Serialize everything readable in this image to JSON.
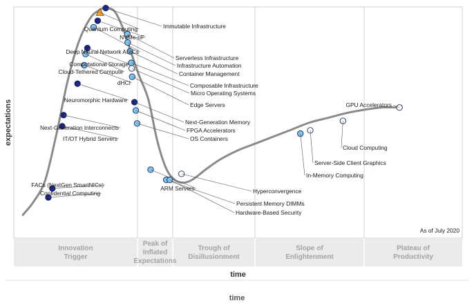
{
  "chart_data": {
    "type": "scatter",
    "chart_kind": "hype-cycle",
    "ylabel": "expectations",
    "xlabel": "time",
    "as_of": "As of July 2020",
    "phases": [
      {
        "lines": [
          "Innovation",
          "Trigger"
        ]
      },
      {
        "lines": [
          "Peak of",
          "Inflated",
          "Expectations"
        ]
      },
      {
        "lines": [
          "Trough of",
          "Disillusionment"
        ]
      },
      {
        "lines": [
          "Slope of",
          "Enlightenment"
        ]
      },
      {
        "lines": [
          "Plateau of",
          "Productivity"
        ]
      }
    ],
    "curve": [
      [
        0.02,
        0.1
      ],
      [
        0.045,
        0.16
      ],
      [
        0.07,
        0.25
      ],
      [
        0.095,
        0.45
      ],
      [
        0.12,
        0.68
      ],
      [
        0.145,
        0.85
      ],
      [
        0.17,
        0.95
      ],
      [
        0.19,
        0.985
      ],
      [
        0.205,
        0.995
      ],
      [
        0.225,
        0.98
      ],
      [
        0.245,
        0.9
      ],
      [
        0.262,
        0.8
      ],
      [
        0.28,
        0.7
      ],
      [
        0.3,
        0.6
      ],
      [
        0.32,
        0.42
      ],
      [
        0.34,
        0.3
      ],
      [
        0.36,
        0.25
      ],
      [
        0.38,
        0.24
      ],
      [
        0.4,
        0.255
      ],
      [
        0.43,
        0.3
      ],
      [
        0.46,
        0.34
      ],
      [
        0.5,
        0.38
      ],
      [
        0.54,
        0.41
      ],
      [
        0.58,
        0.44
      ],
      [
        0.62,
        0.47
      ],
      [
        0.66,
        0.5
      ],
      [
        0.7,
        0.52
      ],
      [
        0.74,
        0.54
      ],
      [
        0.78,
        0.555
      ],
      [
        0.82,
        0.565
      ],
      [
        0.86,
        0.565
      ]
    ],
    "legend_colors": {
      "dark": "#1a237e",
      "light": "#81c6f0",
      "white": "#ffffff",
      "triangle": "#f2a12b"
    },
    "points": [
      {
        "name": "Quantum Computing",
        "x": 0.192,
        "y": 0.975,
        "marker": "triangle",
        "label_side": "left"
      },
      {
        "name": "NVMe-oF",
        "x": 0.187,
        "y": 0.94,
        "marker": "dark",
        "label_side": "left"
      },
      {
        "name": "Immutable Infrastructure",
        "x": 0.205,
        "y": 0.995,
        "marker": "dark",
        "label_side": "right"
      },
      {
        "name": "Deep Neural Network ASICs",
        "x": 0.178,
        "y": 0.912,
        "marker": "light",
        "label_side": "left"
      },
      {
        "name": "Computational Storage",
        "x": 0.164,
        "y": 0.822,
        "marker": "dark",
        "label_side": "left"
      },
      {
        "name": "Cloud-Tethered Compute",
        "x": 0.16,
        "y": 0.796,
        "marker": "light",
        "label_side": "left"
      },
      {
        "name": "dHCI",
        "x": 0.157,
        "y": 0.748,
        "marker": "light",
        "label_side": "left"
      },
      {
        "name": "Neuromorphic Hardware",
        "x": 0.142,
        "y": 0.668,
        "marker": "dark",
        "label_side": "left"
      },
      {
        "name": "Next-Generation Interconnects",
        "x": 0.111,
        "y": 0.532,
        "marker": "dark",
        "label_side": "left"
      },
      {
        "name": "IT/OT Hybrid Servers",
        "x": 0.108,
        "y": 0.484,
        "marker": "dark",
        "label_side": "left"
      },
      {
        "name": "FACs (NextGen SmartNICs)",
        "x": 0.086,
        "y": 0.215,
        "marker": "dark",
        "label_side": "left"
      },
      {
        "name": "Confidential Computing",
        "x": 0.077,
        "y": 0.176,
        "marker": "dark",
        "label_side": "left"
      },
      {
        "name": "Serverless Infrastructure",
        "x": 0.253,
        "y": 0.882,
        "marker": "light",
        "label_side": "right"
      },
      {
        "name": "Infrastructure Automation",
        "x": 0.254,
        "y": 0.846,
        "marker": "light",
        "label_side": "right"
      },
      {
        "name": "Container Management",
        "x": 0.259,
        "y": 0.808,
        "marker": "light",
        "label_side": "right"
      },
      {
        "name": "Composable Infrastructure",
        "x": 0.262,
        "y": 0.758,
        "marker": "light",
        "label_side": "right"
      },
      {
        "name": "Micro Operating Systems",
        "x": 0.263,
        "y": 0.734,
        "marker": "white",
        "label_side": "right"
      },
      {
        "name": "Edge Servers",
        "x": 0.264,
        "y": 0.698,
        "marker": "light",
        "label_side": "right"
      },
      {
        "name": "Next-Generation Memory",
        "x": 0.269,
        "y": 0.588,
        "marker": "dark",
        "label_side": "right"
      },
      {
        "name": "FPGA Accelerators",
        "x": 0.272,
        "y": 0.552,
        "marker": "light",
        "label_side": "right"
      },
      {
        "name": "OS Containers",
        "x": 0.275,
        "y": 0.496,
        "marker": "light",
        "label_side": "right"
      },
      {
        "name": "ARM Servers",
        "x": 0.305,
        "y": 0.296,
        "marker": "light",
        "label_side": "left"
      },
      {
        "name": "Persistent Memory DIMMs",
        "x": 0.34,
        "y": 0.252,
        "marker": "light",
        "label_side": "right"
      },
      {
        "name": "Hardware-Based Security",
        "x": 0.348,
        "y": 0.252,
        "marker": "light",
        "label_side": "right"
      },
      {
        "name": "Hyperconvergence",
        "x": 0.374,
        "y": 0.278,
        "marker": "white",
        "label_side": "right"
      },
      {
        "name": "In-Memory Computing",
        "x": 0.639,
        "y": 0.452,
        "marker": "light",
        "label_side": "right"
      },
      {
        "name": "Server-Side Client Graphics",
        "x": 0.661,
        "y": 0.466,
        "marker": "white",
        "label_side": "right"
      },
      {
        "name": "Cloud Computing",
        "x": 0.734,
        "y": 0.507,
        "marker": "white",
        "label_side": "right"
      },
      {
        "name": "GPU Accelerators",
        "x": 0.86,
        "y": 0.565,
        "marker": "white",
        "label_side": "left"
      }
    ]
  },
  "footer_title": "time"
}
